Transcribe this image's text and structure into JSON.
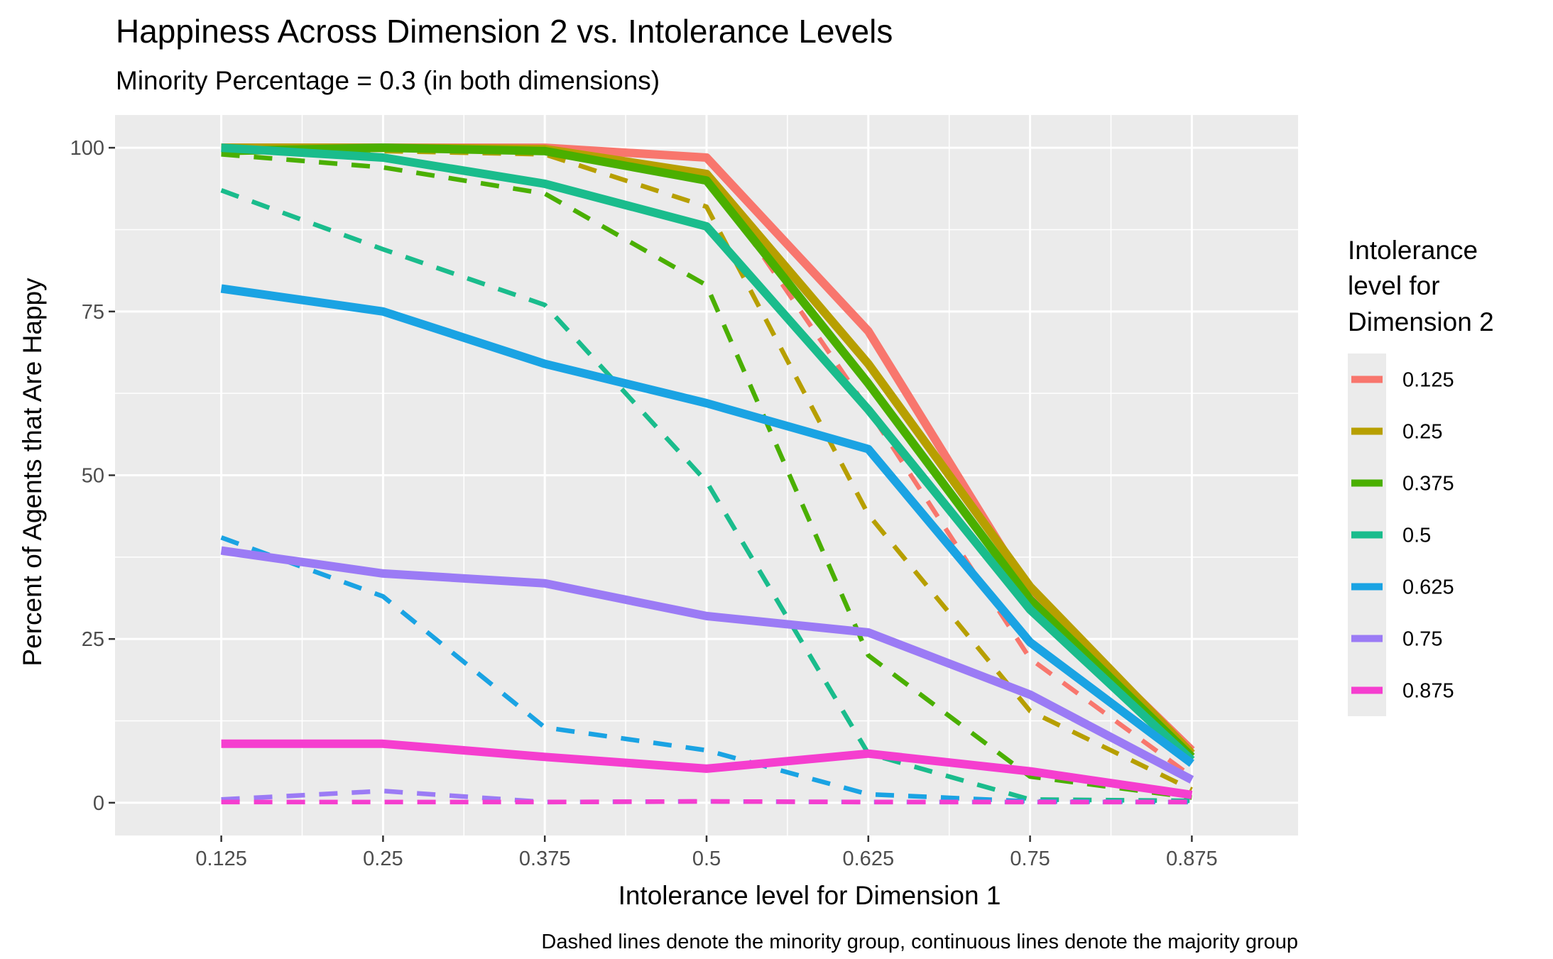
{
  "chart_data": {
    "type": "line",
    "title": "Happiness Across Dimension 2 vs. Intolerance Levels",
    "subtitle": "Minority Percentage = 0.3 (in both dimensions)",
    "xlabel": "Intolerance level for Dimension 1",
    "ylabel": "Percent of Agents that Are Happy",
    "caption": "Dashed lines denote the minority group, continuous lines denote the majority group",
    "x": [
      0.125,
      0.25,
      0.375,
      0.5,
      0.625,
      0.75,
      0.875
    ],
    "x_tick_labels": [
      "0.125",
      "0.25",
      "0.375",
      "0.5",
      "0.625",
      "0.75",
      "0.875"
    ],
    "xlim": [
      0.0429,
      0.9571
    ],
    "y_ticks": [
      0,
      25,
      50,
      75,
      100
    ],
    "ylim": [
      -5,
      105
    ],
    "grid": true,
    "legend": {
      "title_lines": [
        "Intolerance",
        " level for",
        " Dimension 2"
      ],
      "position": "right"
    },
    "series": [
      {
        "name": "0.125",
        "color": "#F8766D",
        "majority": [
          100,
          100,
          100,
          98.5,
          72,
          32,
          8
        ],
        "minority": [
          100,
          100,
          99.5,
          96,
          60,
          22,
          4
        ]
      },
      {
        "name": "0.25",
        "color": "#B79F00",
        "majority": [
          100,
          100,
          99.8,
          96,
          67,
          33,
          7.5
        ],
        "minority": [
          100,
          99.5,
          99,
          91,
          44,
          14,
          2
        ]
      },
      {
        "name": "0.375",
        "color": "#4AAF00",
        "majority": [
          99.5,
          100,
          99.5,
          95,
          64,
          31,
          7
        ],
        "minority": [
          99,
          97,
          93,
          79,
          22.5,
          4,
          0.8
        ]
      },
      {
        "name": "0.5",
        "color": "#1ABC8C",
        "majority": [
          100,
          98.5,
          94.5,
          88,
          60,
          29.5,
          6.5
        ],
        "minority": [
          93.5,
          84.5,
          76,
          49,
          7.5,
          0.5,
          0.3
        ]
      },
      {
        "name": "0.625",
        "color": "#1AA3E3",
        "majority": [
          78.5,
          75,
          67,
          61,
          54,
          24.5,
          6
        ],
        "minority": [
          40.5,
          31.5,
          11.5,
          8,
          1.3,
          0.2,
          0.1
        ]
      },
      {
        "name": "0.75",
        "color": "#9B7BF5",
        "majority": [
          38.5,
          35,
          33.5,
          28.5,
          26,
          16.5,
          3.5
        ],
        "minority": [
          0.5,
          1.8,
          0.1,
          0.2,
          0.1,
          0.1,
          0.1
        ]
      },
      {
        "name": "0.875",
        "color": "#F53ECF",
        "majority": [
          9,
          9,
          7,
          5.2,
          7.5,
          4.8,
          1.2
        ],
        "minority": [
          0.1,
          0.1,
          0.1,
          0.2,
          0.1,
          0.1,
          0.1
        ]
      }
    ]
  }
}
